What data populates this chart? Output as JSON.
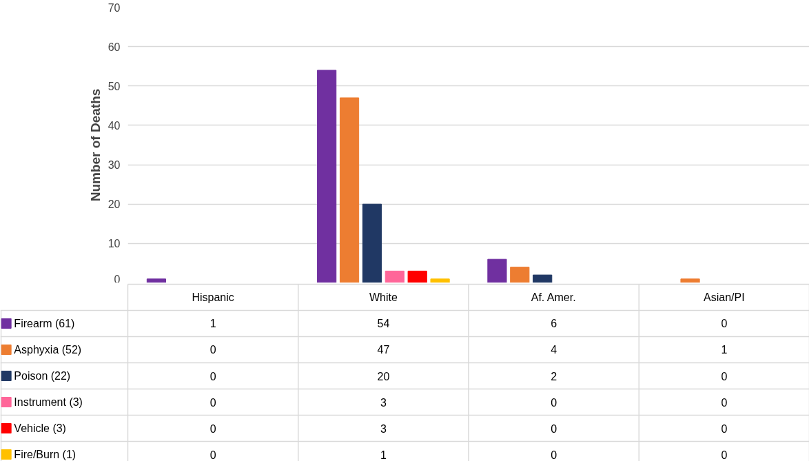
{
  "chart_data": {
    "type": "bar",
    "ylabel": "Number of Deaths",
    "categories": [
      "Hispanic",
      "White",
      "Af. Amer.",
      "Asian/PI"
    ],
    "series": [
      {
        "name": "Firearm (61)",
        "color": "#7030a0",
        "values": [
          1,
          54,
          6,
          0
        ]
      },
      {
        "name": "Asphyxia (52)",
        "color": "#ed7d31",
        "values": [
          0,
          47,
          4,
          1
        ]
      },
      {
        "name": "Poison (22)",
        "color": "#203864",
        "values": [
          0,
          20,
          2,
          0
        ]
      },
      {
        "name": "Instrument (3)",
        "color": "#ff6699",
        "values": [
          0,
          3,
          0,
          0
        ]
      },
      {
        "name": "Vehicle (3)",
        "color": "#ff0000",
        "values": [
          0,
          3,
          0,
          0
        ]
      },
      {
        "name": "Fire/Burn (1)",
        "color": "#ffc000",
        "values": [
          0,
          1,
          0,
          0
        ]
      }
    ],
    "ylim": [
      0,
      70
    ],
    "yticks": [
      0,
      10,
      20,
      30,
      40,
      50,
      60,
      70
    ],
    "grid": "y",
    "legend": "bottom",
    "data_labels": true
  }
}
